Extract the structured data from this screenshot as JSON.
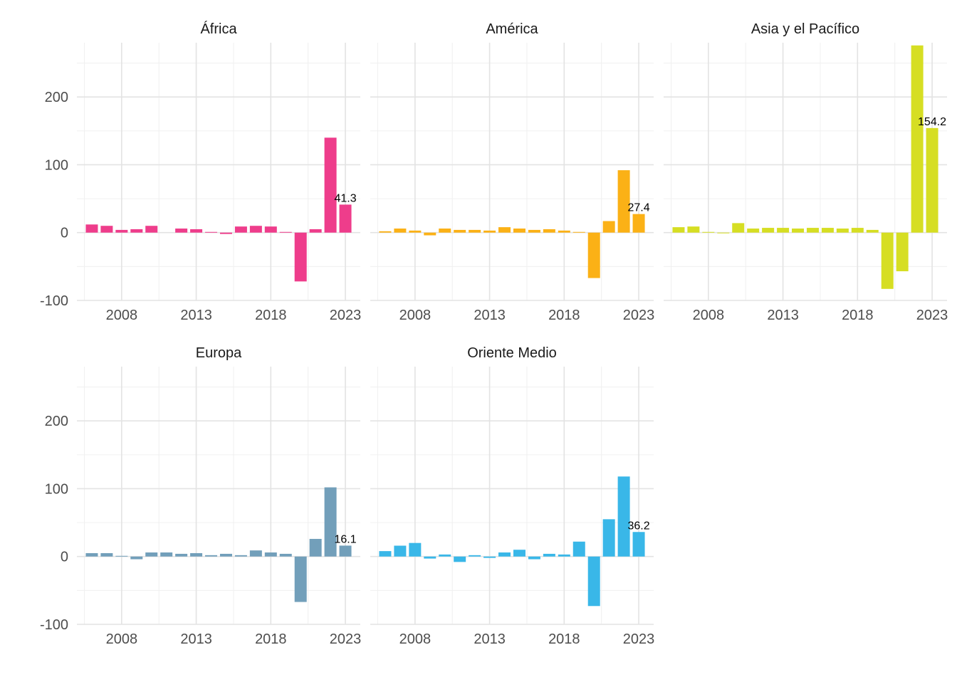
{
  "chart_data": {
    "type": "bar",
    "layout": "facet-grid",
    "x_ticks": [
      2008,
      2013,
      2018,
      2023
    ],
    "y_ticks": [
      -100,
      0,
      100,
      200
    ],
    "xlim": [
      2005,
      2024
    ],
    "ylim": [
      -100,
      280
    ],
    "grid": true,
    "panels": [
      {
        "title": "África",
        "color": "#EE3D8B",
        "x": [
          2006,
          2007,
          2008,
          2009,
          2010,
          2011,
          2012,
          2013,
          2014,
          2015,
          2016,
          2017,
          2018,
          2019,
          2020,
          2021,
          2022,
          2023
        ],
        "values": [
          12,
          10,
          4,
          5,
          10,
          0,
          6,
          5,
          1,
          -2,
          9,
          10,
          9,
          1,
          -72,
          5,
          140,
          41.3
        ],
        "label": "41.3"
      },
      {
        "title": "América",
        "color": "#FBB116",
        "x": [
          2006,
          2007,
          2008,
          2009,
          2010,
          2011,
          2012,
          2013,
          2014,
          2015,
          2016,
          2017,
          2018,
          2019,
          2020,
          2021,
          2022,
          2023
        ],
        "values": [
          2,
          6,
          3,
          -4,
          6,
          4,
          4,
          3,
          8,
          6,
          4,
          5,
          3,
          1,
          -67,
          17,
          92,
          27.4
        ],
        "label": "27.4"
      },
      {
        "title": "Asia y el Pacífico",
        "color": "#D6DE23",
        "x": [
          2006,
          2007,
          2008,
          2009,
          2010,
          2011,
          2012,
          2013,
          2014,
          2015,
          2016,
          2017,
          2018,
          2019,
          2020,
          2021,
          2022,
          2023
        ],
        "values": [
          8,
          9,
          1,
          -1,
          14,
          6,
          7,
          7,
          6,
          7,
          7,
          6,
          7,
          4,
          -83,
          -57,
          276,
          154.2
        ],
        "label": "154.2"
      },
      {
        "title": "Europa",
        "color": "#729FBA",
        "x": [
          2006,
          2007,
          2008,
          2009,
          2010,
          2011,
          2012,
          2013,
          2014,
          2015,
          2016,
          2017,
          2018,
          2019,
          2020,
          2021,
          2022,
          2023
        ],
        "values": [
          5,
          5,
          1,
          -4,
          6,
          6,
          4,
          5,
          2,
          4,
          2,
          9,
          6,
          4,
          -67,
          26,
          102,
          16.1
        ],
        "label": "16.1"
      },
      {
        "title": "Oriente Medio",
        "color": "#39B7E8",
        "x": [
          2006,
          2007,
          2008,
          2009,
          2010,
          2011,
          2012,
          2013,
          2014,
          2015,
          2016,
          2017,
          2018,
          2019,
          2020,
          2021,
          2022,
          2023
        ],
        "values": [
          8,
          16,
          20,
          -3,
          3,
          -8,
          2,
          -2,
          6,
          10,
          -4,
          4,
          3,
          22,
          -73,
          55,
          118,
          36.2
        ],
        "label": "36.2"
      }
    ]
  }
}
